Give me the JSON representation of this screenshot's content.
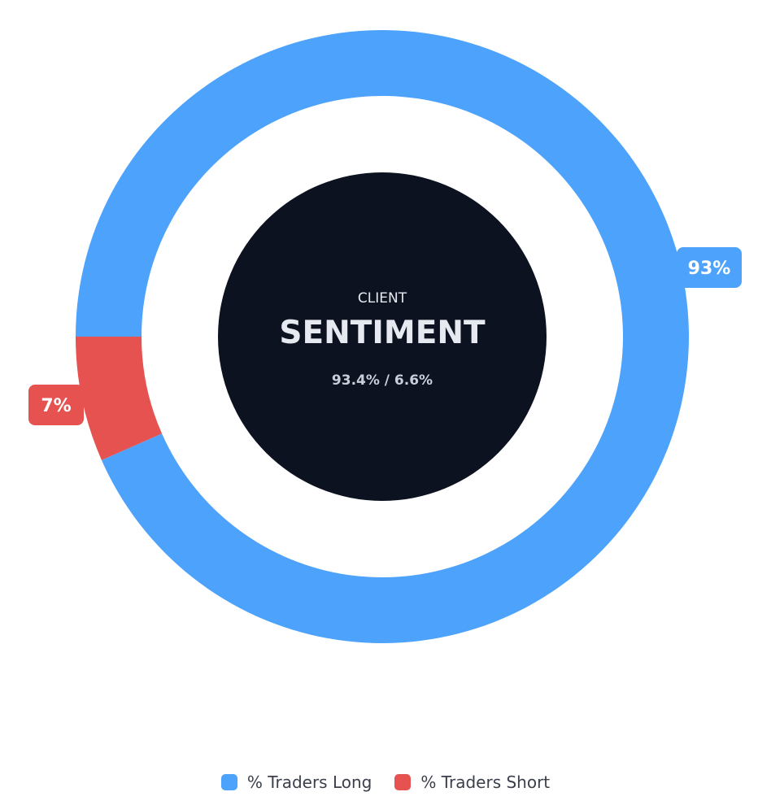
{
  "chart_data": {
    "type": "pie",
    "subtype": "doughnut",
    "series": [
      {
        "name": "% Traders Long",
        "value": 93.4,
        "label": "93%",
        "color": "#4DA3FB"
      },
      {
        "name": "% Traders Short",
        "value": 6.6,
        "label": "7%",
        "color": "#E55250"
      }
    ],
    "center": {
      "kicker": "CLIENT",
      "title": "SENTIMENT",
      "subtitle": "93.4% / 6.6%",
      "background": "#0D1220",
      "text_color": "#E6E9EF"
    },
    "legend_position": "bottom"
  },
  "legend": [
    {
      "label": "% Traders Long",
      "color": "#4DA3FB"
    },
    {
      "label": "% Traders Short",
      "color": "#E55250"
    }
  ]
}
